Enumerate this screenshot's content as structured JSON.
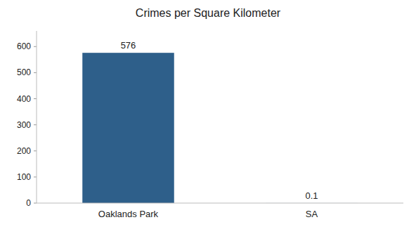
{
  "chart_data": {
    "type": "bar",
    "title": "Crimes per Square Kilometer",
    "categories": [
      "Oaklands Park",
      "SA"
    ],
    "values": [
      576,
      0.1
    ],
    "color": "#2e5f8a",
    "ylim": [
      0,
      660
    ],
    "yticks": [
      0,
      100,
      200,
      300,
      400,
      500,
      600
    ],
    "grid": false,
    "data_labels": true
  }
}
